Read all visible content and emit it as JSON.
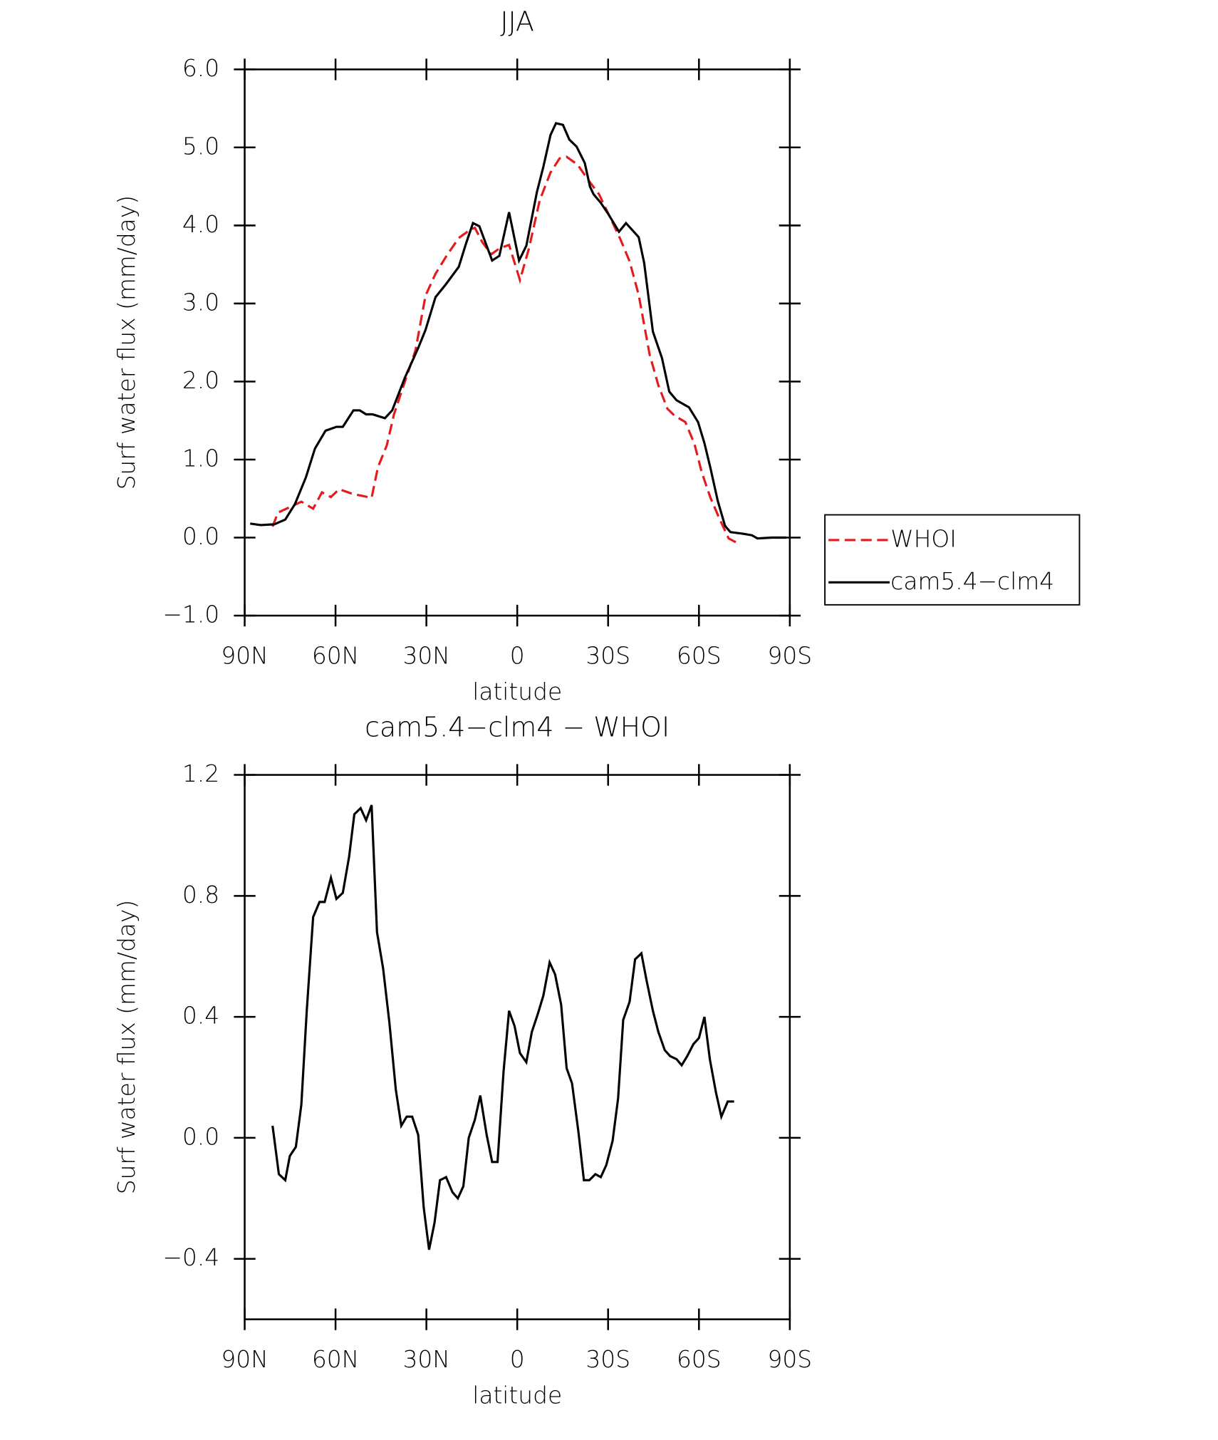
{
  "chart_data": [
    {
      "type": "line",
      "title": "JJA",
      "xlabel": "latitude",
      "ylabel": "Surf water flux (mm/day)",
      "xlim": [
        90,
        -90
      ],
      "xticks": [
        {
          "value": 90,
          "label": "90N"
        },
        {
          "value": 60,
          "label": "60N"
        },
        {
          "value": 30,
          "label": "30N"
        },
        0,
        {
          "value": -30,
          "label": "30S"
        },
        {
          "value": -60,
          "label": "60S"
        },
        {
          "value": -90,
          "label": "90S"
        }
      ],
      "ylim": [
        -1,
        6
      ],
      "yticks": [
        {
          "value": 6,
          "label": "6.0"
        },
        {
          "value": 5,
          "label": "5.0"
        },
        {
          "value": 4,
          "label": "4.0"
        },
        {
          "value": 3,
          "label": "3.0"
        },
        {
          "value": 2,
          "label": "2.0"
        },
        {
          "value": 1,
          "label": "1.0"
        },
        {
          "value": 0,
          "label": "0.0"
        },
        {
          "value": -1,
          "label": "−1.0"
        }
      ],
      "legend": "outside right",
      "series": [
        {
          "name": "WHOI",
          "color": "#e41a1c",
          "dash": true,
          "x": [
            80.8,
            79,
            75.1,
            71.3,
            67.4,
            64.5,
            61.5,
            58.8,
            54.4,
            48.1,
            46,
            43.1,
            40.7,
            37.7,
            33.6,
            30.3,
            27,
            23.2,
            19.3,
            15.7,
            14,
            11.6,
            8.6,
            5.7,
            2.7,
            -0.9,
            -3.9,
            -7.4,
            -11,
            -14,
            -16.3,
            -19.9,
            -23.5,
            -27,
            -31.2,
            -34.1,
            -37.1,
            -40.1,
            -43.7,
            -46.6,
            -49.6,
            -52,
            -55.5,
            -58.5,
            -60.9,
            -63.8,
            -66.8,
            -69.8,
            -72.2
          ],
          "values": [
            0.14,
            0.32,
            0.39,
            0.46,
            0.37,
            0.58,
            0.52,
            0.62,
            0.56,
            0.51,
            0.9,
            1.18,
            1.58,
            1.93,
            2.4,
            3.1,
            3.38,
            3.62,
            3.84,
            3.94,
            3.97,
            3.79,
            3.63,
            3.71,
            3.75,
            3.3,
            3.71,
            4.32,
            4.68,
            4.86,
            4.88,
            4.78,
            4.58,
            4.4,
            4.06,
            3.82,
            3.54,
            3.11,
            2.35,
            1.95,
            1.65,
            1.56,
            1.48,
            1.2,
            0.84,
            0.51,
            0.24,
            -0.01,
            -0.06
          ]
        },
        {
          "name": "cam5.4−clm4",
          "color": "#000000",
          "dash": false,
          "x": [
            88.2,
            84.7,
            80.2,
            76.6,
            73.4,
            69.8,
            66.8,
            63.3,
            59.7,
            57.6,
            54.1,
            52,
            49.9,
            47.8,
            43.7,
            41.3,
            37.1,
            32.7,
            30.3,
            27,
            23.5,
            19.3,
            16.9,
            14.6,
            12.5,
            8.3,
            5.9,
            2.7,
            -0.6,
            -3,
            -6.5,
            -8.6,
            -11,
            -12.8,
            -15.1,
            -17.2,
            -19.6,
            -22.3,
            -24,
            -25.2,
            -27.6,
            -30,
            -33.6,
            -35.9,
            -40.1,
            -41.9,
            -44.8,
            -47.8,
            -50.2,
            -52.6,
            -56.7,
            -59.7,
            -61.8,
            -63.8,
            -66.2,
            -68.6,
            -70.4,
            -74.5,
            -77.5,
            -79.3,
            -84.1,
            -88.8
          ],
          "values": [
            0.18,
            0.16,
            0.17,
            0.23,
            0.43,
            0.77,
            1.14,
            1.37,
            1.42,
            1.42,
            1.63,
            1.63,
            1.58,
            1.58,
            1.53,
            1.63,
            2.05,
            2.43,
            2.66,
            3.08,
            3.25,
            3.47,
            3.77,
            4.03,
            3.99,
            3.55,
            3.61,
            4.17,
            3.55,
            3.74,
            4.43,
            4.75,
            5.16,
            5.31,
            5.29,
            5.1,
            5.01,
            4.8,
            4.5,
            4.4,
            4.29,
            4.15,
            3.92,
            4.03,
            3.85,
            3.52,
            2.64,
            2.3,
            1.87,
            1.76,
            1.67,
            1.48,
            1.21,
            0.89,
            0.47,
            0.15,
            0.07,
            0.05,
            0.03,
            -0.01,
            0,
            0
          ]
        }
      ]
    },
    {
      "type": "line",
      "title": "cam5.4−clm4 − WHOI",
      "xlabel": "latitude",
      "ylabel": "Surf water flux (mm/day)",
      "xlim": [
        90,
        -90
      ],
      "xticks": [
        {
          "value": 90,
          "label": "90N"
        },
        {
          "value": 60,
          "label": "60N"
        },
        {
          "value": 30,
          "label": "30N"
        },
        0,
        {
          "value": -30,
          "label": "30S"
        },
        {
          "value": -60,
          "label": "60S"
        },
        {
          "value": -90,
          "label": "90S"
        }
      ],
      "ylim": [
        -0.6,
        1.2
      ],
      "yticks": [
        {
          "value": 1.2,
          "label": "1.2"
        },
        {
          "value": 0.8,
          "label": "0.8"
        },
        {
          "value": 0.4,
          "label": "0.4"
        },
        {
          "value": 0,
          "label": "0.0"
        },
        {
          "value": -0.4,
          "label": "−0.4"
        }
      ],
      "series": [
        {
          "color": "#000000",
          "dash": false,
          "x": [
            80.8,
            78.7,
            76.6,
            75.1,
            73.1,
            71.3,
            69.5,
            67.4,
            65.3,
            63.6,
            61.5,
            59.7,
            57.6,
            55.5,
            53.8,
            51.7,
            49.9,
            48.1,
            46.3,
            44.3,
            42.2,
            40.1,
            38.3,
            36.5,
            34.7,
            32.7,
            30.9,
            29.1,
            27.3,
            25.5,
            23.5,
            21.4,
            19.6,
            17.8,
            16,
            14,
            12.2,
            10.1,
            8.3,
            6.5,
            4.5,
            2.7,
            0.9,
            -0.9,
            -3,
            -4.8,
            -6.8,
            -8.6,
            -10.7,
            -12.5,
            -14.5,
            -16.3,
            -18.1,
            -20.2,
            -22,
            -23.8,
            -25.8,
            -27.6,
            -29.4,
            -31.5,
            -33.3,
            -35,
            -37.1,
            -38.9,
            -41,
            -42.7,
            -44.8,
            -46.6,
            -48.7,
            -50.5,
            -52.6,
            -54.3,
            -56.1,
            -58.2,
            -60,
            -61.8,
            -63.6,
            -65.6,
            -67.4,
            -69.5,
            -71.6
          ],
          "values": [
            0.04,
            -0.12,
            -0.14,
            -0.06,
            -0.03,
            0.11,
            0.42,
            0.73,
            0.78,
            0.78,
            0.86,
            0.79,
            0.81,
            0.93,
            1.07,
            1.09,
            1.05,
            1.1,
            0.68,
            0.56,
            0.38,
            0.16,
            0.04,
            0.07,
            0.07,
            0.01,
            -0.23,
            -0.37,
            -0.28,
            -0.14,
            -0.13,
            -0.18,
            -0.2,
            -0.16,
            0,
            0.06,
            0.14,
            0.01,
            -0.08,
            -0.08,
            0.22,
            0.42,
            0.37,
            0.28,
            0.25,
            0.35,
            0.41,
            0.47,
            0.58,
            0.54,
            0.44,
            0.23,
            0.18,
            0.02,
            -0.14,
            -0.14,
            -0.12,
            -0.13,
            -0.09,
            -0.01,
            0.13,
            0.39,
            0.45,
            0.59,
            0.61,
            0.52,
            0.42,
            0.35,
            0.29,
            0.27,
            0.26,
            0.24,
            0.27,
            0.31,
            0.33,
            0.4,
            0.26,
            0.15,
            0.07,
            0.12,
            0.12
          ]
        }
      ]
    }
  ]
}
